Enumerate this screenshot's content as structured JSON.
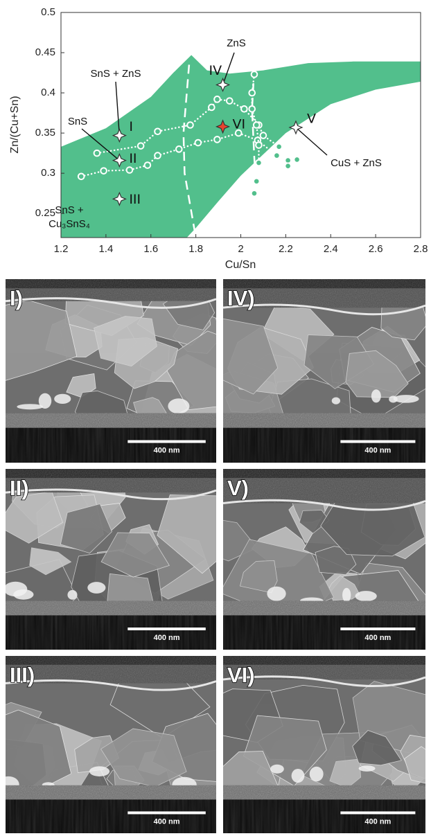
{
  "chart_data": {
    "type": "scatter",
    "x_label": "Cu/Sn",
    "y_label": "Zn/(Cu+Sn)",
    "xlim": [
      1.2,
      2.8
    ],
    "ylim": [
      0.22,
      0.5
    ],
    "xticks": [
      1.2,
      1.4,
      1.6,
      1.8,
      2,
      2.2,
      2.4,
      2.6,
      2.8
    ],
    "yticks": [
      0.25,
      0.3,
      0.35,
      0.4,
      0.45,
      0.5
    ],
    "region": {
      "color": "#52bf8c",
      "x": [
        1.2,
        1.4,
        1.6,
        1.7,
        1.78,
        1.85,
        1.95,
        2.1,
        2.3,
        2.5,
        2.8,
        2.8,
        2.6,
        2.4,
        2.2,
        2.0,
        1.9,
        1.8,
        1.76,
        1.2
      ],
      "y": [
        0.333,
        0.356,
        0.395,
        0.425,
        0.447,
        0.428,
        0.424,
        0.428,
        0.437,
        0.439,
        0.439,
        0.414,
        0.404,
        0.386,
        0.35,
        0.297,
        0.265,
        0.232,
        0.22,
        0.22
      ]
    },
    "boundaries": [
      {
        "color": "#ffffff",
        "x": [
          1.77,
          1.745,
          1.75,
          1.8
        ],
        "y": [
          0.435,
          0.35,
          0.3,
          0.22
        ]
      },
      {
        "color": "#ffffff",
        "x": [
          2.06,
          2.05,
          2.06,
          2.07
        ],
        "y": [
          0.43,
          0.38,
          0.32,
          0.27
        ]
      }
    ],
    "series": [
      {
        "color": "#ffffff",
        "x": [
          1.36,
          1.555,
          1.63,
          1.775,
          1.87,
          1.895,
          1.95,
          2.015,
          2.08,
          2.1,
          2.17,
          2.21
        ],
        "y": [
          0.325,
          0.334,
          0.352,
          0.36,
          0.382,
          0.392,
          0.39,
          0.38,
          0.36,
          0.347,
          0.333,
          0.316
        ]
      },
      {
        "color": "#ffffff",
        "x": [
          1.29,
          1.39,
          1.505,
          1.585,
          1.63,
          1.725,
          1.81,
          1.895,
          1.99,
          2.075,
          2.16,
          2.21,
          2.25
        ],
        "y": [
          0.296,
          0.303,
          0.304,
          0.31,
          0.322,
          0.33,
          0.338,
          0.342,
          0.35,
          0.341,
          0.322,
          0.309,
          0.317
        ]
      },
      {
        "color": "#ffffff",
        "x": [
          2.06,
          2.05,
          2.05,
          2.07,
          2.08,
          2.08,
          2.07,
          2.06
        ],
        "y": [
          0.423,
          0.4,
          0.38,
          0.36,
          0.335,
          0.313,
          0.29,
          0.275
        ]
      }
    ],
    "samples": [
      {
        "label": "I",
        "x": 1.46,
        "y": 0.347,
        "color": "#ffffff"
      },
      {
        "label": "II",
        "x": 1.46,
        "y": 0.316,
        "color": "#ffffff"
      },
      {
        "label": "III",
        "x": 1.46,
        "y": 0.268,
        "color": "#ffffff"
      },
      {
        "label": "IV",
        "x": 1.92,
        "y": 0.41,
        "color": "#ffffff"
      },
      {
        "label": "V",
        "x": 2.245,
        "y": 0.357,
        "color": "#ffffff"
      },
      {
        "label": "VI",
        "x": 1.92,
        "y": 0.358,
        "color": "#e8432f"
      }
    ],
    "annotations": [
      [
        "SnS + ZnS"
      ],
      [
        "SnS"
      ],
      [
        "ZnS"
      ],
      [
        "CuS + ZnS"
      ],
      [
        "SnS +",
        "Cu₃SnS₄"
      ]
    ]
  },
  "images": [
    {
      "label": "I)",
      "scale_bar": "400 nm"
    },
    {
      "label": "II)",
      "scale_bar": "400 nm"
    },
    {
      "label": "III)",
      "scale_bar": "400 nm"
    },
    {
      "label": "IV)",
      "scale_bar": "400 nm"
    },
    {
      "label": "V)",
      "scale_bar": "400 nm"
    },
    {
      "label": "VI)",
      "scale_bar": "400 nm"
    }
  ]
}
